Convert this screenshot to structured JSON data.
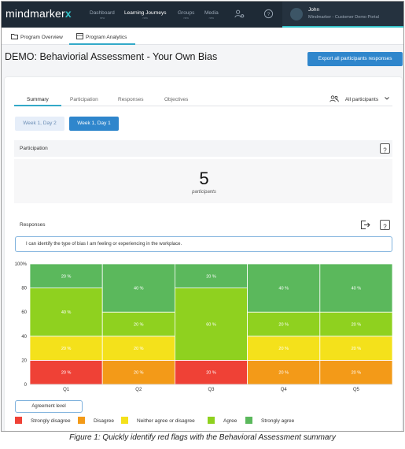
{
  "app": {
    "logo_text": "mindmarker",
    "logo_mark": "x"
  },
  "nav": {
    "items": [
      {
        "label": "Dashboard",
        "sub": "new",
        "active": false
      },
      {
        "label": "Learning Journeys",
        "sub": "new",
        "active": true
      },
      {
        "label": "Groups",
        "sub": "new",
        "active": false
      },
      {
        "label": "Media",
        "sub": "new",
        "active": false
      }
    ],
    "icons": [
      "users-gear-icon",
      "help-circle-icon"
    ],
    "user": {
      "name": "John",
      "org": "Mindmarker - Customer Demo Portal"
    }
  },
  "subtabs": [
    {
      "label": "Program Overview",
      "icon": "folder-icon"
    },
    {
      "label": "Program Analytics",
      "icon": "analytics-icon",
      "active": true
    }
  ],
  "page": {
    "title": "DEMO: Behaviorial Assessment - Your Own Bias",
    "export_label": "Export all participants responses"
  },
  "tabs": [
    {
      "label": "Summary",
      "active": true
    },
    {
      "label": "Participation"
    },
    {
      "label": "Responses"
    },
    {
      "label": "Objectives"
    }
  ],
  "participants_filter": "All participants",
  "weeks": [
    {
      "label": "Week 1, Day 2",
      "active": false
    },
    {
      "label": "Week 1, Day 1",
      "active": true
    }
  ],
  "participation": {
    "heading": "Participation",
    "count": "5",
    "count_label": "participants"
  },
  "responses": {
    "heading": "Responses",
    "question": "I can identify the type of bias I am feeling or experiencing in the workplace."
  },
  "agreement_button": "Agreement level",
  "colors": {
    "strongly_disagree": "#ef4136",
    "disagree": "#f39a18",
    "neutral": "#f4e11b",
    "agree": "#8fd11f",
    "strongly_agree": "#5bb85c",
    "accent": "#2f86cc",
    "nav_bg": "#1e2a36"
  },
  "chart_data": {
    "type": "bar",
    "stacked": true,
    "categories": [
      "Q1",
      "Q2",
      "Q3",
      "Q4",
      "Q5"
    ],
    "ylim": [
      0,
      100
    ],
    "yticks": [
      "0",
      "20",
      "40",
      "60",
      "80",
      "100%"
    ],
    "series": [
      {
        "name": "Strongly disagree",
        "values": [
          20,
          0,
          20,
          0,
          0
        ]
      },
      {
        "name": "Disagree",
        "values": [
          0,
          20,
          0,
          20,
          20
        ]
      },
      {
        "name": "Neither agree or disagree",
        "values": [
          20,
          20,
          0,
          20,
          20
        ]
      },
      {
        "name": "Agree",
        "values": [
          40,
          20,
          60,
          20,
          20
        ]
      },
      {
        "name": "Strongly agree",
        "values": [
          20,
          40,
          20,
          40,
          40
        ]
      }
    ],
    "labels": [
      [
        "20 %",
        "",
        "20 %",
        "",
        ""
      ],
      [
        "",
        "20 %",
        "",
        "20 %",
        "20 %"
      ],
      [
        "20 %",
        "20 %",
        "",
        "20 %",
        "20 %"
      ],
      [
        "40 %",
        "20 %",
        "60 %",
        "20 %",
        "20 %"
      ],
      [
        "20 %",
        "40 %",
        "20 %",
        "40 %",
        "40 %"
      ]
    ]
  },
  "caption": "Figure 1:  Quickly identify red flags with the Behavioral Assessment  summary"
}
